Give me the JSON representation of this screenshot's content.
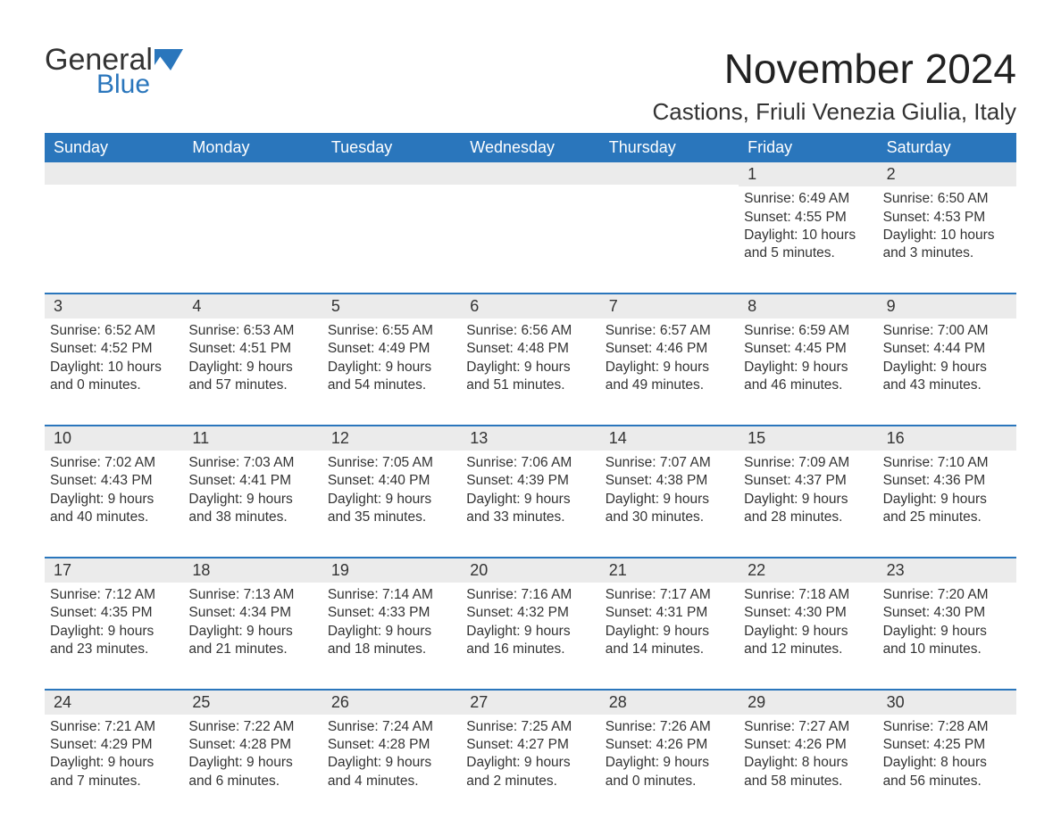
{
  "brand": {
    "name": "General",
    "sub": "Blue",
    "accent": "#2a76bc"
  },
  "title": {
    "month_year": "November 2024",
    "location": "Castions, Friuli Venezia Giulia, Italy"
  },
  "labels": {
    "sunrise": "Sunrise:",
    "sunset": "Sunset:",
    "daylight": "Daylight:"
  },
  "day_names": [
    "Sunday",
    "Monday",
    "Tuesday",
    "Wednesday",
    "Thursday",
    "Friday",
    "Saturday"
  ],
  "colors": {
    "header_bg": "#2a76bc",
    "header_text": "#ffffff",
    "daynum_bg": "#ebebeb",
    "text": "#333333",
    "rule": "#2a76bc"
  },
  "weeks": [
    [
      null,
      null,
      null,
      null,
      null,
      {
        "n": 1,
        "sunrise": "6:49 AM",
        "sunset": "4:55 PM",
        "daylight": "10 hours and 5 minutes."
      },
      {
        "n": 2,
        "sunrise": "6:50 AM",
        "sunset": "4:53 PM",
        "daylight": "10 hours and 3 minutes."
      }
    ],
    [
      {
        "n": 3,
        "sunrise": "6:52 AM",
        "sunset": "4:52 PM",
        "daylight": "10 hours and 0 minutes."
      },
      {
        "n": 4,
        "sunrise": "6:53 AM",
        "sunset": "4:51 PM",
        "daylight": "9 hours and 57 minutes."
      },
      {
        "n": 5,
        "sunrise": "6:55 AM",
        "sunset": "4:49 PM",
        "daylight": "9 hours and 54 minutes."
      },
      {
        "n": 6,
        "sunrise": "6:56 AM",
        "sunset": "4:48 PM",
        "daylight": "9 hours and 51 minutes."
      },
      {
        "n": 7,
        "sunrise": "6:57 AM",
        "sunset": "4:46 PM",
        "daylight": "9 hours and 49 minutes."
      },
      {
        "n": 8,
        "sunrise": "6:59 AM",
        "sunset": "4:45 PM",
        "daylight": "9 hours and 46 minutes."
      },
      {
        "n": 9,
        "sunrise": "7:00 AM",
        "sunset": "4:44 PM",
        "daylight": "9 hours and 43 minutes."
      }
    ],
    [
      {
        "n": 10,
        "sunrise": "7:02 AM",
        "sunset": "4:43 PM",
        "daylight": "9 hours and 40 minutes."
      },
      {
        "n": 11,
        "sunrise": "7:03 AM",
        "sunset": "4:41 PM",
        "daylight": "9 hours and 38 minutes."
      },
      {
        "n": 12,
        "sunrise": "7:05 AM",
        "sunset": "4:40 PM",
        "daylight": "9 hours and 35 minutes."
      },
      {
        "n": 13,
        "sunrise": "7:06 AM",
        "sunset": "4:39 PM",
        "daylight": "9 hours and 33 minutes."
      },
      {
        "n": 14,
        "sunrise": "7:07 AM",
        "sunset": "4:38 PM",
        "daylight": "9 hours and 30 minutes."
      },
      {
        "n": 15,
        "sunrise": "7:09 AM",
        "sunset": "4:37 PM",
        "daylight": "9 hours and 28 minutes."
      },
      {
        "n": 16,
        "sunrise": "7:10 AM",
        "sunset": "4:36 PM",
        "daylight": "9 hours and 25 minutes."
      }
    ],
    [
      {
        "n": 17,
        "sunrise": "7:12 AM",
        "sunset": "4:35 PM",
        "daylight": "9 hours and 23 minutes."
      },
      {
        "n": 18,
        "sunrise": "7:13 AM",
        "sunset": "4:34 PM",
        "daylight": "9 hours and 21 minutes."
      },
      {
        "n": 19,
        "sunrise": "7:14 AM",
        "sunset": "4:33 PM",
        "daylight": "9 hours and 18 minutes."
      },
      {
        "n": 20,
        "sunrise": "7:16 AM",
        "sunset": "4:32 PM",
        "daylight": "9 hours and 16 minutes."
      },
      {
        "n": 21,
        "sunrise": "7:17 AM",
        "sunset": "4:31 PM",
        "daylight": "9 hours and 14 minutes."
      },
      {
        "n": 22,
        "sunrise": "7:18 AM",
        "sunset": "4:30 PM",
        "daylight": "9 hours and 12 minutes."
      },
      {
        "n": 23,
        "sunrise": "7:20 AM",
        "sunset": "4:30 PM",
        "daylight": "9 hours and 10 minutes."
      }
    ],
    [
      {
        "n": 24,
        "sunrise": "7:21 AM",
        "sunset": "4:29 PM",
        "daylight": "9 hours and 7 minutes."
      },
      {
        "n": 25,
        "sunrise": "7:22 AM",
        "sunset": "4:28 PM",
        "daylight": "9 hours and 6 minutes."
      },
      {
        "n": 26,
        "sunrise": "7:24 AM",
        "sunset": "4:28 PM",
        "daylight": "9 hours and 4 minutes."
      },
      {
        "n": 27,
        "sunrise": "7:25 AM",
        "sunset": "4:27 PM",
        "daylight": "9 hours and 2 minutes."
      },
      {
        "n": 28,
        "sunrise": "7:26 AM",
        "sunset": "4:26 PM",
        "daylight": "9 hours and 0 minutes."
      },
      {
        "n": 29,
        "sunrise": "7:27 AM",
        "sunset": "4:26 PM",
        "daylight": "8 hours and 58 minutes."
      },
      {
        "n": 30,
        "sunrise": "7:28 AM",
        "sunset": "4:25 PM",
        "daylight": "8 hours and 56 minutes."
      }
    ]
  ]
}
